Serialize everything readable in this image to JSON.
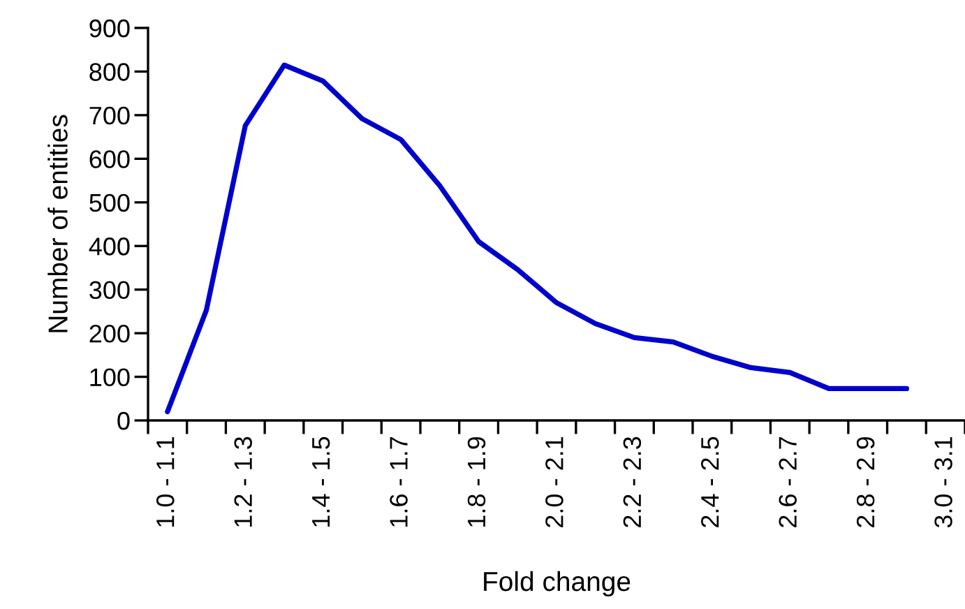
{
  "chart_data": {
    "type": "line",
    "xlabel": "Fold change",
    "ylabel": "Number of entities",
    "categories": [
      "1.0 - 1.1",
      null,
      "1.2 - 1.3",
      null,
      "1.4 - 1.5",
      null,
      "1.6 - 1.7",
      null,
      "1.8 - 1.9",
      null,
      "2.0 - 2.1",
      null,
      "2.2 - 2.3",
      null,
      "2.4 - 2.5",
      null,
      "2.6 - 2.7",
      null,
      "2.8 - 2.9",
      null,
      "3.0 - 3.1"
    ],
    "series": [
      {
        "color": "#0000cc",
        "values": [
          20,
          253,
          676,
          815,
          778,
          692,
          644,
          538,
          410,
          346,
          270,
          222,
          190,
          180,
          147,
          121,
          110,
          73,
          73,
          73,
          null
        ]
      }
    ],
    "ylim": [
      0,
      900
    ],
    "yticks": [
      0,
      100,
      200,
      300,
      400,
      500,
      600,
      700,
      800,
      900
    ],
    "grid": false,
    "legend": false,
    "marker": "none",
    "line_style": "solid"
  }
}
